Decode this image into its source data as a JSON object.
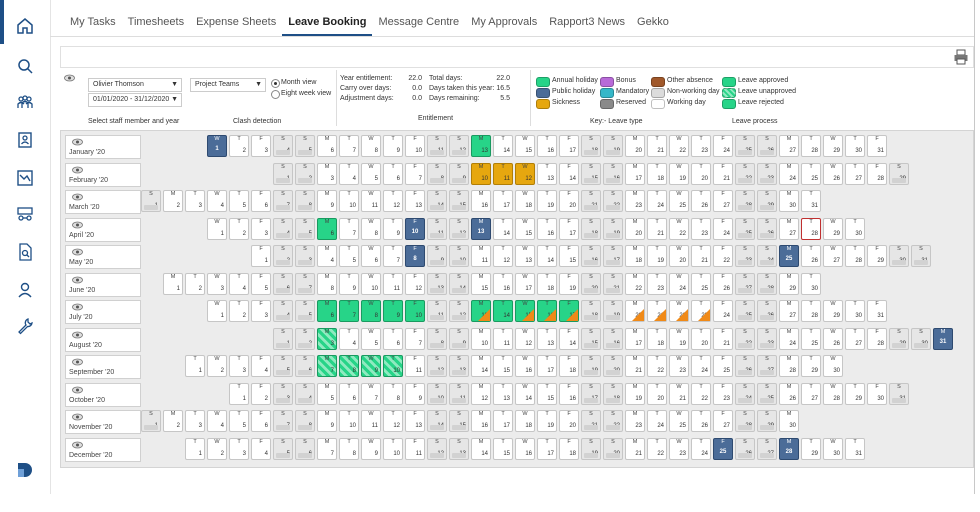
{
  "tabs": [
    "My Tasks",
    "Timesheets",
    "Expense Sheets",
    "Leave Booking",
    "Message Centre",
    "My Approvals",
    "Rapport3 News",
    "Gekko"
  ],
  "active_tab": "Leave Booking",
  "sidebar": {
    "icons": [
      "home-icon",
      "search-icon",
      "people-icon",
      "contact-card-icon",
      "chart-icon",
      "org-chart-icon",
      "document-search-icon",
      "person-icon",
      "wrench-icon"
    ],
    "logo": "rapport-logo-icon"
  },
  "controls": {
    "staff_member": "Olivier Thomson",
    "date_range": "01/01/2020 - 31/12/2020",
    "staff_caption": "Select staff member and year",
    "clash_select": "Project Teams",
    "clash_caption": "Clash detection",
    "view_month": "Month view",
    "view_eight": "Eight week view"
  },
  "entitlement": {
    "caption": "Entitlement",
    "rows_left": [
      [
        "Year entitlement:",
        "22.0"
      ],
      [
        "Carry over days:",
        "0.0"
      ],
      [
        "Adjustment days:",
        "0.0"
      ]
    ],
    "rows_right": [
      [
        "Total days:",
        "22.0"
      ],
      [
        "Days taken this year:",
        "16.5"
      ],
      [
        "Days remaining:",
        "5.5"
      ]
    ]
  },
  "key": {
    "leave_type_caption": "Key:- Leave type",
    "leave_process_caption": "Leave process",
    "items": [
      {
        "label": "Annual holiday",
        "color": "#27d488"
      },
      {
        "label": "Public holiday",
        "color": "#4b6c98"
      },
      {
        "label": "Sickness",
        "color": "#e6a70f"
      },
      {
        "label": "Bonus",
        "color": "#b86ad8"
      },
      {
        "label": "Mandatory",
        "color": "#35b7c8"
      },
      {
        "label": "Reserved",
        "color": "#8a8a8a"
      },
      {
        "label": "Other absence",
        "color": "#a0582a"
      },
      {
        "label": "Non-working day",
        "color": "#dcdcdc"
      },
      {
        "label": "Working day",
        "color": "#ffffff"
      },
      {
        "label": "Leave approved",
        "color": "#27d488"
      },
      {
        "label": "Leave unapproved",
        "color": "#27d488"
      },
      {
        "label": "Leave rejected",
        "color": "#27d488"
      }
    ]
  },
  "months": [
    {
      "label": "January '20",
      "start": 3,
      "days": 31,
      "annual": [
        13
      ],
      "public": [
        1
      ],
      "sick": [],
      "unapp": [],
      "tri": [],
      "today": []
    },
    {
      "label": "February '20",
      "start": 6,
      "days": 29,
      "annual": [],
      "public": [],
      "sick": [
        10,
        11,
        12
      ],
      "unapp": [],
      "tri": [],
      "today": []
    },
    {
      "label": "March '20",
      "start": 0,
      "days": 31,
      "annual": [],
      "public": [],
      "sick": [],
      "unapp": [],
      "tri": [],
      "today": []
    },
    {
      "label": "April '20",
      "start": 3,
      "days": 30,
      "annual": [
        6
      ],
      "public": [
        10,
        13
      ],
      "sick": [],
      "unapp": [],
      "tri": [],
      "today": [
        28
      ]
    },
    {
      "label": "May '20",
      "start": 5,
      "days": 31,
      "annual": [],
      "public": [
        8,
        25
      ],
      "sick": [],
      "unapp": [],
      "tri": [],
      "today": []
    },
    {
      "label": "June '20",
      "start": 1,
      "days": 30,
      "annual": [],
      "public": [],
      "sick": [],
      "unapp": [],
      "tri": [],
      "today": []
    },
    {
      "label": "July '20",
      "start": 3,
      "days": 31,
      "annual": [
        6,
        7,
        8,
        9,
        10,
        13,
        14,
        15,
        16,
        17
      ],
      "public": [],
      "sick": [],
      "unapp": [],
      "tri": [
        13,
        15,
        16,
        17,
        20,
        21,
        22,
        23
      ],
      "today": []
    },
    {
      "label": "August '20",
      "start": 6,
      "days": 31,
      "annual": [],
      "public": [
        31
      ],
      "sick": [],
      "unapp": [
        3
      ],
      "tri": [],
      "today": []
    },
    {
      "label": "September '20",
      "start": 2,
      "days": 30,
      "annual": [
        7,
        8,
        9,
        10
      ],
      "public": [],
      "sick": [],
      "unapp": [
        7,
        8,
        9,
        10
      ],
      "tri": [],
      "today": []
    },
    {
      "label": "October '20",
      "start": 4,
      "days": 31,
      "annual": [],
      "public": [],
      "sick": [],
      "unapp": [],
      "tri": [],
      "today": []
    },
    {
      "label": "November '20",
      "start": 0,
      "days": 30,
      "annual": [],
      "public": [],
      "sick": [],
      "unapp": [],
      "tri": [],
      "today": []
    },
    {
      "label": "December '20",
      "start": 2,
      "days": 31,
      "annual": [],
      "public": [
        25,
        28
      ],
      "sick": [],
      "unapp": [],
      "tri": [],
      "today": []
    }
  ],
  "weekday_letters": [
    "S",
    "M",
    "T",
    "W",
    "T",
    "F",
    "S"
  ],
  "first_weekday_offset": [
    3,
    6,
    0,
    3,
    5,
    1,
    3,
    6,
    2,
    4,
    0,
    2
  ]
}
